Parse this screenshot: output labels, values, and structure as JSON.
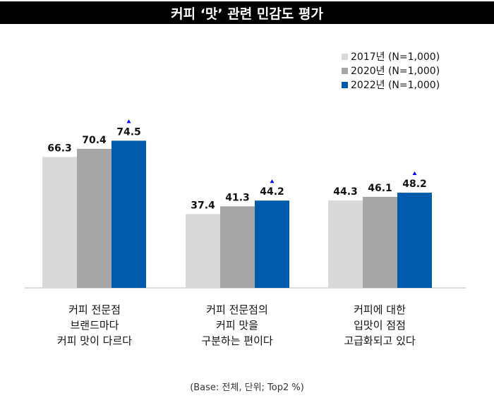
{
  "chart_data": {
    "type": "bar",
    "title": "커피 ‘맛’ 관련 민감도 평가",
    "categories": [
      "커피 전문점\n브랜드마다\n커피 맛이 다르다",
      "커피 전문점의\n커피 맛을\n구분하는 편이다",
      "커피에 대한\n입맛이 점점\n고급화되고 있다"
    ],
    "series": [
      {
        "name": "2017년 (N=1,000)",
        "color": "#d9d9d9",
        "values": [
          66.3,
          37.4,
          44.3
        ]
      },
      {
        "name": "2020년 (N=1,000)",
        "color": "#a6a6a6",
        "values": [
          70.4,
          41.3,
          46.1
        ]
      },
      {
        "name": "2022년 (N=1,000)",
        "color": "#005bac",
        "values": [
          74.5,
          44.2,
          48.2
        ]
      }
    ],
    "value_labels": [
      [
        "66.3",
        "37.4",
        "44.3"
      ],
      [
        "70.4",
        "41.3",
        "46.1"
      ],
      [
        "74.5",
        "44.2",
        "48.2"
      ]
    ],
    "up_marker_color": "#0000ff",
    "ylim": [
      0,
      100
    ],
    "legend_position": "top-right",
    "note": "(Base: 전체, 단위; Top2 %)"
  }
}
